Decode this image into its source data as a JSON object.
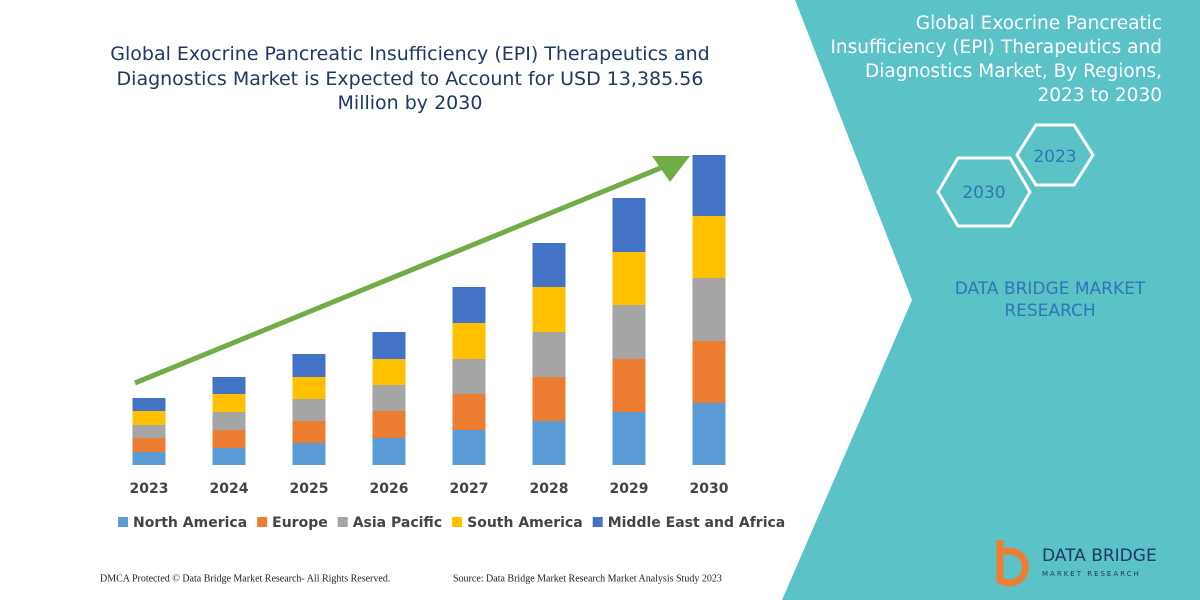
{
  "chart_data": {
    "type": "stacked_bar",
    "title": "Global Exocrine Pancreatic Insufficiency (EPI) Therapeutics and Diagnostics Market is Expected to Account for USD 13,385.56 Million by 2030",
    "categories": [
      "2023",
      "2024",
      "2025",
      "2026",
      "2027",
      "2028",
      "2029",
      "2030"
    ],
    "series": [
      {
        "name": "North America",
        "color": "#5b9bd5",
        "values": [
          13,
          17,
          22,
          27,
          35,
          44,
          53,
          62
        ]
      },
      {
        "name": "Europe",
        "color": "#ed7d31",
        "values": [
          14,
          18,
          22,
          27,
          36,
          44,
          53,
          62
        ]
      },
      {
        "name": "Asia Pacific",
        "color": "#a5a5a5",
        "values": [
          13,
          18,
          22,
          26,
          35,
          45,
          54,
          63
        ]
      },
      {
        "name": "South America",
        "color": "#ffc000",
        "values": [
          14,
          18,
          22,
          26,
          36,
          45,
          53,
          62
        ]
      },
      {
        "name": "Middle East and Africa",
        "color": "#4472c4",
        "values": [
          13,
          17,
          23,
          27,
          36,
          44,
          54,
          61
        ]
      }
    ],
    "ylim": [
      0,
      310
    ]
  },
  "panel": {
    "title": "Global Exocrine Pancreatic Insufficiency (EPI) Therapeutics and Diagnostics Market, By Regions, 2023 to 2030",
    "hex_start": "2023",
    "hex_end": "2030",
    "brand": "DATA BRIDGE MARKET RESEARCH"
  },
  "footer": {
    "left": "DMCA Protected © Data Bridge Market Research-  All Rights Reserved.",
    "right": "Source: Data Bridge Market Research  Market Analysis Study 2023"
  },
  "logo": {
    "name": "DATA BRIDGE",
    "tagline": "MARKET RESEARCH"
  }
}
